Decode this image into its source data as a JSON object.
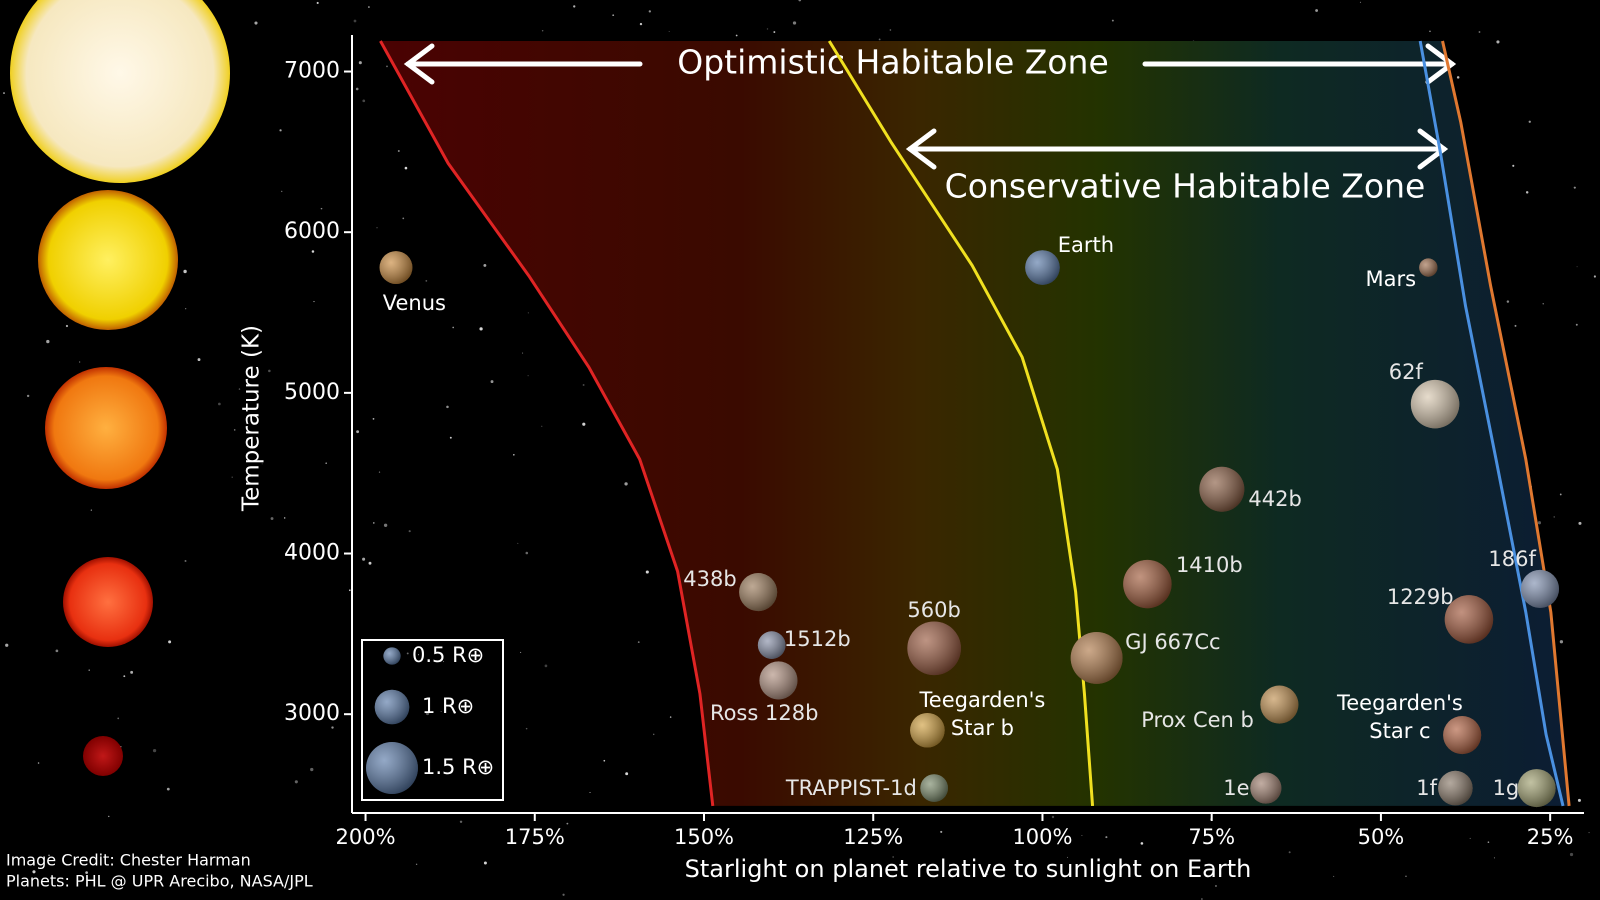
{
  "chart_data": {
    "type": "scatter",
    "zone_labels": [
      "Optimistic Habitable Zone",
      "Conservative Habitable Zone"
    ],
    "x_label": "Starlight on planet relative to sunlight on Earth",
    "y_label": "Temperature (K)",
    "credits": [
      "Image Credit: Chester Harman",
      "Planets:  PHL @ UPR Arecibo, NASA/JPL"
    ],
    "xlim": [
      202,
      20
    ],
    "ylim": [
      2385,
      7190
    ],
    "xticks": [
      {
        "value": 200,
        "label": "200%"
      },
      {
        "value": 175,
        "label": "175%"
      },
      {
        "value": 150,
        "label": "150%"
      },
      {
        "value": 125,
        "label": "125%"
      },
      {
        "value": 100,
        "label": "100%"
      },
      {
        "value": 75,
        "label": "75%"
      },
      {
        "value": 50,
        "label": "50%"
      },
      {
        "value": 25,
        "label": "25%"
      }
    ],
    "yticks": [
      3000,
      4000,
      5000,
      6000,
      7000
    ],
    "points": {
      "labels": [
        "Venus",
        "Earth",
        "Mars",
        "62f",
        "442b",
        "1410b",
        "186f",
        "1229b",
        "438b",
        "1512b",
        "560b",
        "GJ 667Cc",
        "Ross 128b",
        "Prox Cen b",
        "Teegarden's\nStar b",
        "Teegarden's\nStar c",
        "TRAPPIST-1d",
        "1e",
        "1f",
        "1g"
      ],
      "x": [
        195.5,
        100,
        43,
        42,
        73.5,
        84.5,
        26.5,
        37,
        142,
        140,
        116,
        92,
        139,
        65,
        117,
        38,
        116,
        67,
        39,
        27
      ],
      "values": [
        5780,
        5780,
        5780,
        4930,
        4400,
        3810,
        3780,
        3590,
        3760,
        3430,
        3410,
        3350,
        3210,
        3060,
        2900,
        2870,
        2540,
        2540,
        2540,
        2540
      ],
      "sizes": [
        0.95,
        1,
        0.53,
        1.4,
        1.3,
        1.4,
        1.1,
        1.4,
        1.1,
        0.8,
        1.55,
        1.5,
        1.1,
        1.1,
        1,
        1.1,
        0.8,
        0.9,
        1,
        1.1
      ],
      "colors": [
        "#c98a3e",
        "#5a7aa8",
        "#a07050",
        "#d8c8b0",
        "#8a5e44",
        "#a05a3a",
        "#8090b0",
        "#a0563a",
        "#9a7a5a",
        "#8890a8",
        "#9a5a40",
        "#b07a4a",
        "#b09080",
        "#c09050",
        "#d0a040",
        "#b06040",
        "#7a8a6a",
        "#a08070",
        "#8a7a6a",
        "#a0a070"
      ]
    },
    "legend": {
      "labels": [
        "0.5 R⊕",
        "1 R⊕",
        "1.5 R⊕"
      ],
      "sizes": [
        0.5,
        1,
        1.5
      ],
      "color": "#5a7aa8"
    },
    "boundaries": [
      {
        "color": "#e02424",
        "x": [
          197.8,
          187.8,
          175.9,
          167,
          159.5,
          153.9,
          150.6,
          148.7
        ],
        "values": [
          7190,
          6429,
          5730,
          5159,
          4587,
          3889,
          3127,
          2429
        ]
      },
      {
        "color": "#f0e020",
        "x": [
          131.5,
          122.3,
          110.4,
          103,
          97.8,
          95.1,
          93.8,
          92.6
        ],
        "values": [
          7190,
          6556,
          5794,
          5222,
          4524,
          3762,
          3127,
          2429
        ]
      },
      {
        "color": "#4a90e0",
        "x": [
          44.2,
          41.2,
          37.5,
          33,
          28.6,
          25.6,
          23.1
        ],
        "values": [
          7190,
          6492,
          5540,
          4587,
          3635,
          2873,
          2429
        ]
      },
      {
        "color": "#e07830",
        "x": [
          40.9,
          38.2,
          33.8,
          28.6,
          24.9,
          22.2
        ],
        "values": [
          7190,
          6683,
          5667,
          4587,
          3635,
          2429
        ]
      }
    ]
  }
}
